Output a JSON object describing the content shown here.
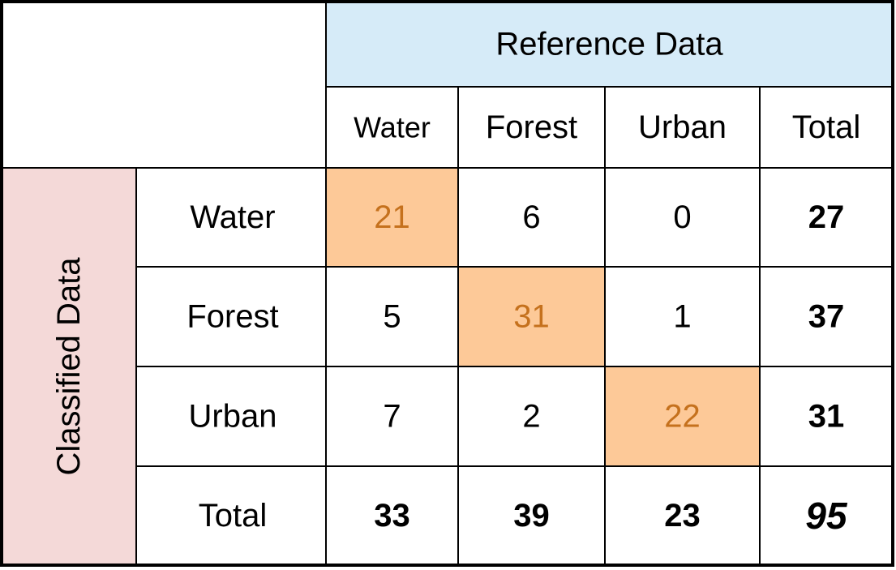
{
  "chart_data": {
    "type": "table",
    "title": "",
    "column_header": "Reference Data",
    "row_header": "Classified Data",
    "columns": [
      "Water",
      "Forest",
      "Urban",
      "Total"
    ],
    "rows": [
      {
        "label": "Water",
        "values": [
          "21",
          "6",
          "0",
          "27"
        ]
      },
      {
        "label": "Forest",
        "values": [
          "5",
          "31",
          "1",
          "37"
        ]
      },
      {
        "label": "Urban",
        "values": [
          "7",
          "2",
          "22",
          "31"
        ]
      },
      {
        "label": "Total",
        "values": [
          "33",
          "39",
          "23",
          "95"
        ]
      }
    ],
    "colors": {
      "column_header_fill": "#d6ebf8",
      "row_header_fill": "#f4d9d8",
      "diagonal_fill": "#fdc998",
      "diagonal_text": "#c5711d",
      "text": "#000000",
      "border": "#000000"
    }
  }
}
